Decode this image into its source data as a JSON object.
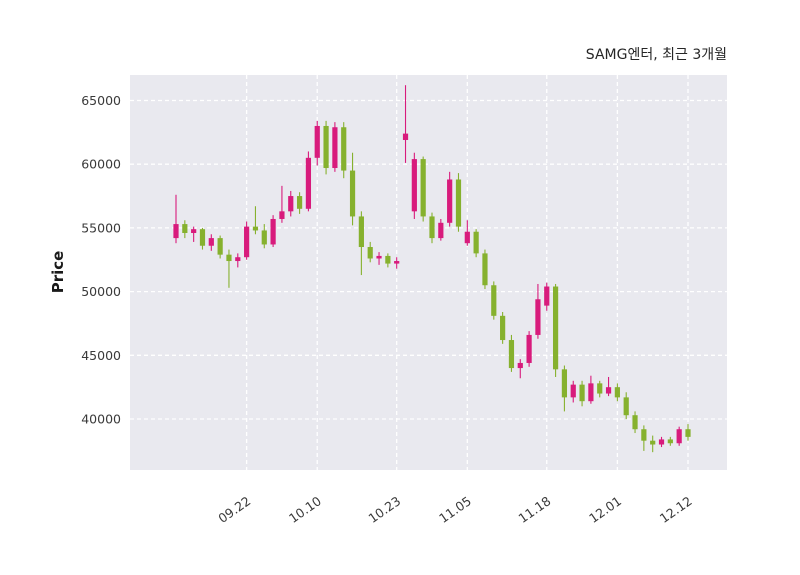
{
  "chart_data": {
    "type": "candlestick",
    "title": "SAMG엔터, 최근 3개월",
    "ylabel": "Price",
    "ylim": [
      36000,
      67000
    ],
    "yticks": [
      40000,
      45000,
      50000,
      55000,
      60000,
      65000
    ],
    "xtick_labels": [
      "09.22",
      "10.10",
      "10.23",
      "11.05",
      "11.18",
      "12.01",
      "12.12"
    ],
    "xtick_indices": [
      8,
      16,
      25,
      33,
      42,
      50,
      58
    ],
    "up_color": "#d81b7c",
    "down_color": "#86b12e",
    "grid": true,
    "grid_color": "#ffffff",
    "plot_bg": "#e9e9ef",
    "tick_label_color": "#3a3a3a",
    "legend_position": "none",
    "candles": [
      [
        54200,
        57600,
        53800,
        55300
      ],
      [
        55300,
        55600,
        54200,
        54600
      ],
      [
        54600,
        55100,
        53900,
        54900
      ],
      [
        54900,
        55000,
        53300,
        53600
      ],
      [
        53600,
        54500,
        53200,
        54200
      ],
      [
        54200,
        54400,
        52600,
        52900
      ],
      [
        52900,
        53300,
        50300,
        52400
      ],
      [
        52400,
        53000,
        51900,
        52700
      ],
      [
        52700,
        55500,
        52500,
        55100
      ],
      [
        55100,
        56700,
        54500,
        54800
      ],
      [
        54800,
        55300,
        53400,
        53700
      ],
      [
        53700,
        56000,
        53500,
        55700
      ],
      [
        55700,
        58300,
        55400,
        56300
      ],
      [
        56300,
        57900,
        55900,
        57500
      ],
      [
        57500,
        57800,
        56100,
        56500
      ],
      [
        56500,
        61000,
        56300,
        60500
      ],
      [
        60500,
        63400,
        59900,
        63000
      ],
      [
        63000,
        63400,
        59200,
        59700
      ],
      [
        59700,
        63300,
        59400,
        62900
      ],
      [
        62900,
        63300,
        58900,
        59500
      ],
      [
        59500,
        60900,
        55200,
        55900
      ],
      [
        55900,
        56300,
        51300,
        53500
      ],
      [
        53500,
        53900,
        52300,
        52600
      ],
      [
        52600,
        53100,
        52100,
        52800
      ],
      [
        52800,
        53000,
        51900,
        52200
      ],
      [
        52200,
        52700,
        51800,
        52400
      ],
      [
        61900,
        66200,
        60100,
        62400
      ],
      [
        56300,
        60900,
        55700,
        60400
      ],
      [
        60400,
        60600,
        55500,
        55900
      ],
      [
        55900,
        56200,
        53800,
        54200
      ],
      [
        54200,
        55700,
        54000,
        55400
      ],
      [
        55400,
        59400,
        55100,
        58800
      ],
      [
        58800,
        59300,
        54700,
        55100
      ],
      [
        53800,
        55600,
        53600,
        54700
      ],
      [
        54700,
        54900,
        52700,
        53000
      ],
      [
        53000,
        53300,
        50200,
        50500
      ],
      [
        50500,
        50800,
        47800,
        48100
      ],
      [
        48100,
        48400,
        45900,
        46200
      ],
      [
        46200,
        46600,
        43700,
        44000
      ],
      [
        44000,
        44700,
        43200,
        44400
      ],
      [
        44400,
        46900,
        44100,
        46600
      ],
      [
        46600,
        50600,
        46300,
        49400
      ],
      [
        48900,
        50700,
        48500,
        50400
      ],
      [
        50400,
        50600,
        43300,
        43900
      ],
      [
        43900,
        44200,
        40600,
        41700
      ],
      [
        41700,
        43000,
        41300,
        42700
      ],
      [
        42700,
        43000,
        41000,
        41400
      ],
      [
        41400,
        43400,
        41200,
        42800
      ],
      [
        42800,
        43000,
        41700,
        42000
      ],
      [
        42000,
        43300,
        41800,
        42500
      ],
      [
        42500,
        42800,
        41400,
        41700
      ],
      [
        41700,
        42100,
        40000,
        40300
      ],
      [
        40300,
        40600,
        38900,
        39200
      ],
      [
        39200,
        39500,
        37500,
        38300
      ],
      [
        38300,
        38700,
        37400,
        38000
      ],
      [
        38000,
        38600,
        37800,
        38400
      ],
      [
        38400,
        38600,
        37900,
        38100
      ],
      [
        38100,
        39400,
        37900,
        39200
      ],
      [
        39200,
        39600,
        38300,
        38600
      ]
    ]
  }
}
